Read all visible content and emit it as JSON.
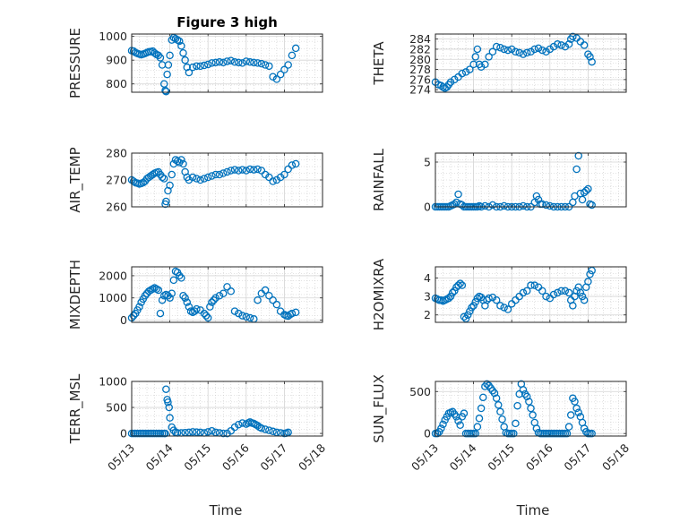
{
  "figure": {
    "title": "Figure 3 high",
    "xlabel": "Time",
    "x_ticklabels": [
      "05/13",
      "05/14",
      "05/15",
      "05/16",
      "05/17",
      "05/18"
    ],
    "marker_color": "#0072BD",
    "axis_color": "#262626",
    "grid_color": "#d4d4d4"
  },
  "chart_data": [
    {
      "id": "pressure",
      "type": "scatter",
      "title": "Figure 3 high",
      "xlabel": "",
      "ylabel": "PRESSURE",
      "xlim": [
        0,
        5
      ],
      "ylim": [
        765,
        1010
      ],
      "yticks": [
        800,
        900,
        1000
      ],
      "grid": true,
      "x": [
        0.0,
        0.05,
        0.1,
        0.15,
        0.2,
        0.25,
        0.3,
        0.35,
        0.4,
        0.45,
        0.5,
        0.55,
        0.6,
        0.65,
        0.7,
        0.75,
        0.8,
        0.85,
        0.88,
        0.9,
        0.93,
        0.96,
        1.0,
        1.05,
        1.1,
        1.15,
        1.2,
        1.25,
        1.3,
        1.35,
        1.4,
        1.45,
        1.5,
        1.6,
        1.7,
        1.8,
        1.9,
        2.0,
        2.1,
        2.2,
        2.3,
        2.4,
        2.5,
        2.6,
        2.7,
        2.8,
        2.9,
        3.0,
        3.1,
        3.2,
        3.3,
        3.4,
        3.5,
        3.6,
        3.7,
        3.8,
        3.9,
        4.0,
        4.1,
        4.2,
        4.3
      ],
      "y": [
        940,
        938,
        932,
        928,
        925,
        923,
        925,
        928,
        932,
        935,
        936,
        938,
        930,
        924,
        920,
        910,
        880,
        800,
        772,
        768,
        840,
        880,
        920,
        985,
        995,
        990,
        985,
        980,
        960,
        930,
        900,
        870,
        848,
        870,
        875,
        875,
        878,
        882,
        888,
        890,
        892,
        890,
        895,
        898,
        892,
        890,
        888,
        895,
        892,
        890,
        888,
        885,
        880,
        875,
        830,
        820,
        840,
        860,
        880,
        920,
        950
      ]
    },
    {
      "id": "theta",
      "type": "scatter",
      "ylabel": "THETA",
      "xlim": [
        0,
        5
      ],
      "ylim": [
        273.5,
        285
      ],
      "yticks": [
        274,
        276,
        278,
        280,
        282,
        284
      ],
      "grid": true,
      "x": [
        0.0,
        0.08,
        0.15,
        0.2,
        0.25,
        0.3,
        0.35,
        0.4,
        0.5,
        0.6,
        0.7,
        0.8,
        0.9,
        1.0,
        1.05,
        1.1,
        1.15,
        1.2,
        1.3,
        1.4,
        1.5,
        1.6,
        1.7,
        1.8,
        1.9,
        2.0,
        2.1,
        2.2,
        2.3,
        2.4,
        2.5,
        2.6,
        2.7,
        2.8,
        2.9,
        3.0,
        3.1,
        3.2,
        3.3,
        3.4,
        3.5,
        3.55,
        3.6,
        3.7,
        3.8,
        3.9,
        4.0,
        4.05,
        4.1
      ],
      "y": [
        275.5,
        275.0,
        274.8,
        274.5,
        274.3,
        274.5,
        275.0,
        275.5,
        276.0,
        276.5,
        277.2,
        277.5,
        278.0,
        279.0,
        280.5,
        282.0,
        279.0,
        278.5,
        279.0,
        280.5,
        281.5,
        282.5,
        282.3,
        282.0,
        281.8,
        282.0,
        281.5,
        281.3,
        281.0,
        281.3,
        281.5,
        282.0,
        282.2,
        281.8,
        281.5,
        282.0,
        282.5,
        283.0,
        282.8,
        282.5,
        283.0,
        284.0,
        284.5,
        284.2,
        283.5,
        282.8,
        281.0,
        280.5,
        279.5
      ]
    },
    {
      "id": "air_temp",
      "type": "scatter",
      "ylabel": "AIR_TEMP",
      "xlim": [
        0,
        5
      ],
      "ylim": [
        260,
        280
      ],
      "yticks": [
        260,
        270,
        280
      ],
      "grid": true,
      "x": [
        0.0,
        0.05,
        0.1,
        0.15,
        0.2,
        0.25,
        0.3,
        0.35,
        0.4,
        0.45,
        0.5,
        0.55,
        0.6,
        0.65,
        0.7,
        0.75,
        0.8,
        0.85,
        0.88,
        0.9,
        0.95,
        1.0,
        1.05,
        1.1,
        1.15,
        1.2,
        1.25,
        1.3,
        1.35,
        1.4,
        1.45,
        1.5,
        1.6,
        1.7,
        1.8,
        1.9,
        2.0,
        2.1,
        2.2,
        2.3,
        2.4,
        2.5,
        2.6,
        2.7,
        2.8,
        2.9,
        3.0,
        3.1,
        3.2,
        3.3,
        3.4,
        3.5,
        3.6,
        3.7,
        3.8,
        3.9,
        4.0,
        4.1,
        4.2,
        4.3
      ],
      "y": [
        270,
        269.5,
        269,
        268.8,
        268.5,
        268.7,
        269,
        269.5,
        270.5,
        271,
        271.5,
        272,
        272.5,
        272.8,
        273,
        272,
        271,
        270.5,
        261,
        262,
        266,
        268,
        272,
        276,
        277.5,
        277,
        276.5,
        277.5,
        276,
        273,
        271,
        270,
        271,
        270.5,
        270,
        270.5,
        271,
        271.5,
        272,
        272,
        272.5,
        273,
        273.5,
        273.8,
        273.5,
        273.8,
        273.5,
        274,
        273.8,
        274,
        273.5,
        272,
        271,
        269.5,
        270,
        271,
        272,
        274,
        275.5,
        276
      ]
    },
    {
      "id": "rainfall",
      "type": "scatter",
      "ylabel": "RAINFALL",
      "xlim": [
        0,
        5
      ],
      "ylim": [
        0,
        6
      ],
      "yticks": [
        0,
        5
      ],
      "grid": true,
      "x": [
        0.0,
        0.05,
        0.1,
        0.15,
        0.2,
        0.25,
        0.3,
        0.35,
        0.4,
        0.45,
        0.5,
        0.55,
        0.6,
        0.65,
        0.7,
        0.75,
        0.8,
        0.85,
        0.9,
        0.95,
        1.0,
        1.05,
        1.1,
        1.15,
        1.2,
        1.3,
        1.4,
        1.5,
        1.6,
        1.7,
        1.8,
        1.9,
        2.0,
        2.1,
        2.2,
        2.3,
        2.4,
        2.5,
        2.6,
        2.65,
        2.7,
        2.75,
        2.8,
        2.9,
        3.0,
        3.1,
        3.2,
        3.3,
        3.4,
        3.5,
        3.6,
        3.65,
        3.7,
        3.75,
        3.8,
        3.85,
        3.9,
        3.95,
        4.0,
        4.05,
        4.1
      ],
      "y": [
        0,
        0,
        0,
        0,
        0,
        0,
        0,
        0,
        0.1,
        0.2,
        0.3,
        0.5,
        1.4,
        0.3,
        0.2,
        0,
        0,
        0,
        0,
        0,
        0,
        0,
        0,
        0.1,
        0,
        0.1,
        0,
        0.2,
        0,
        0,
        0.1,
        0,
        0,
        0,
        0,
        0.1,
        0,
        0,
        0.5,
        1.2,
        0.8,
        0.3,
        0.3,
        0.2,
        0.1,
        0,
        0,
        0,
        0,
        0,
        0.5,
        1.2,
        4.2,
        5.7,
        1.5,
        0.8,
        1.6,
        1.8,
        2.0,
        0.3,
        0.2
      ]
    },
    {
      "id": "mixdepth",
      "type": "scatter",
      "ylabel": "MIXDEPTH",
      "xlim": [
        0,
        5
      ],
      "ylim": [
        -100,
        2400
      ],
      "yticks": [
        0,
        1000,
        2000
      ],
      "grid": true,
      "x": [
        0.0,
        0.05,
        0.1,
        0.15,
        0.2,
        0.25,
        0.3,
        0.35,
        0.4,
        0.45,
        0.5,
        0.55,
        0.6,
        0.65,
        0.7,
        0.75,
        0.8,
        0.85,
        0.9,
        0.95,
        1.0,
        1.05,
        1.1,
        1.15,
        1.2,
        1.25,
        1.3,
        1.35,
        1.4,
        1.45,
        1.5,
        1.55,
        1.6,
        1.65,
        1.7,
        1.8,
        1.9,
        1.95,
        2.0,
        2.05,
        2.1,
        2.15,
        2.2,
        2.3,
        2.4,
        2.5,
        2.6,
        2.7,
        2.8,
        2.9,
        3.0,
        3.1,
        3.2,
        3.3,
        3.4,
        3.5,
        3.6,
        3.7,
        3.8,
        3.9,
        4.0,
        4.05,
        4.1,
        4.15,
        4.2,
        4.3
      ],
      "y": [
        100,
        200,
        300,
        450,
        600,
        800,
        950,
        1100,
        1200,
        1300,
        1350,
        1400,
        1450,
        1400,
        1350,
        300,
        900,
        1100,
        1150,
        1100,
        1000,
        1200,
        1800,
        2200,
        2150,
        2000,
        1900,
        1100,
        1000,
        800,
        600,
        400,
        350,
        400,
        500,
        450,
        300,
        200,
        100,
        600,
        800,
        900,
        1000,
        1100,
        1200,
        1500,
        1300,
        400,
        300,
        200,
        150,
        100,
        50,
        900,
        1200,
        1350,
        1100,
        900,
        700,
        400,
        250,
        200,
        180,
        250,
        300,
        350
      ]
    },
    {
      "id": "h2omixra",
      "type": "scatter",
      "ylabel": "H2OMIXRA",
      "xlim": [
        0,
        5
      ],
      "ylim": [
        1.6,
        4.6
      ],
      "yticks": [
        2,
        3,
        4
      ],
      "grid": true,
      "x": [
        0.0,
        0.05,
        0.1,
        0.15,
        0.2,
        0.25,
        0.3,
        0.35,
        0.4,
        0.45,
        0.5,
        0.55,
        0.6,
        0.65,
        0.7,
        0.75,
        0.8,
        0.85,
        0.9,
        0.95,
        1.0,
        1.05,
        1.1,
        1.15,
        1.2,
        1.25,
        1.3,
        1.35,
        1.4,
        1.5,
        1.6,
        1.7,
        1.8,
        1.9,
        2.0,
        2.1,
        2.2,
        2.3,
        2.4,
        2.5,
        2.6,
        2.7,
        2.8,
        2.9,
        3.0,
        3.1,
        3.2,
        3.3,
        3.4,
        3.5,
        3.55,
        3.6,
        3.65,
        3.7,
        3.75,
        3.8,
        3.85,
        3.9,
        3.95,
        4.0,
        4.05,
        4.1
      ],
      "y": [
        2.9,
        2.85,
        2.8,
        2.8,
        2.75,
        2.8,
        2.85,
        2.9,
        3.0,
        3.2,
        3.3,
        3.5,
        3.6,
        3.7,
        3.6,
        1.9,
        1.8,
        2.0,
        2.2,
        2.4,
        2.5,
        2.7,
        2.9,
        3.0,
        2.95,
        2.8,
        2.5,
        2.8,
        2.9,
        2.95,
        2.8,
        2.5,
        2.4,
        2.3,
        2.6,
        2.8,
        3.0,
        3.2,
        3.3,
        3.6,
        3.6,
        3.5,
        3.3,
        3.0,
        2.9,
        3.1,
        3.2,
        3.3,
        3.3,
        3.2,
        2.8,
        2.5,
        3.0,
        3.3,
        3.5,
        3.2,
        3.0,
        2.8,
        3.5,
        3.8,
        4.2,
        4.4
      ]
    },
    {
      "id": "terr_msl",
      "type": "scatter",
      "ylabel": "TERR_MSL",
      "xlim": [
        0,
        5
      ],
      "ylim": [
        -50,
        1000
      ],
      "yticks": [
        0,
        500,
        1000
      ],
      "grid": true,
      "x": [
        0.0,
        0.05,
        0.1,
        0.15,
        0.2,
        0.25,
        0.3,
        0.35,
        0.4,
        0.45,
        0.5,
        0.55,
        0.6,
        0.65,
        0.7,
        0.75,
        0.8,
        0.85,
        0.88,
        0.9,
        0.93,
        0.95,
        0.98,
        1.0,
        1.05,
        1.1,
        1.15,
        1.2,
        1.3,
        1.4,
        1.5,
        1.6,
        1.7,
        1.8,
        1.9,
        2.0,
        2.1,
        2.2,
        2.3,
        2.4,
        2.5,
        2.6,
        2.7,
        2.8,
        2.9,
        3.0,
        3.05,
        3.1,
        3.15,
        3.2,
        3.25,
        3.3,
        3.35,
        3.4,
        3.5,
        3.6,
        3.7,
        3.8,
        3.9,
        4.0,
        4.05,
        4.1
      ],
      "y": [
        0,
        0,
        0,
        0,
        0,
        0,
        0,
        0,
        0,
        0,
        0,
        0,
        0,
        0,
        0,
        0,
        0,
        0,
        0,
        850,
        650,
        600,
        500,
        300,
        120,
        60,
        20,
        10,
        10,
        15,
        20,
        30,
        25,
        20,
        10,
        30,
        50,
        20,
        10,
        0,
        0,
        50,
        120,
        170,
        200,
        180,
        200,
        220,
        200,
        190,
        170,
        150,
        120,
        100,
        80,
        60,
        40,
        20,
        10,
        0,
        5,
        20
      ]
    },
    {
      "id": "sun_flux",
      "type": "scatter",
      "ylabel": "SUN_FLUX",
      "xlim": [
        0,
        5
      ],
      "ylim": [
        -30,
        620
      ],
      "yticks": [
        0,
        500
      ],
      "grid": true,
      "x": [
        0.0,
        0.05,
        0.1,
        0.15,
        0.2,
        0.25,
        0.3,
        0.35,
        0.4,
        0.45,
        0.5,
        0.55,
        0.6,
        0.65,
        0.7,
        0.75,
        0.8,
        0.85,
        0.9,
        0.95,
        1.0,
        1.05,
        1.1,
        1.15,
        1.2,
        1.25,
        1.3,
        1.35,
        1.4,
        1.45,
        1.5,
        1.55,
        1.6,
        1.65,
        1.7,
        1.75,
        1.8,
        1.85,
        1.9,
        1.95,
        2.0,
        2.05,
        2.1,
        2.15,
        2.2,
        2.25,
        2.3,
        2.35,
        2.4,
        2.45,
        2.5,
        2.55,
        2.6,
        2.65,
        2.7,
        2.75,
        2.8,
        2.85,
        2.9,
        2.95,
        3.0,
        3.05,
        3.1,
        3.15,
        3.2,
        3.25,
        3.3,
        3.35,
        3.4,
        3.45,
        3.5,
        3.55,
        3.6,
        3.65,
        3.7,
        3.75,
        3.8,
        3.85,
        3.9,
        3.95,
        4.0,
        4.05,
        4.1
      ],
      "y": [
        0,
        0,
        20,
        60,
        110,
        160,
        200,
        240,
        250,
        260,
        230,
        200,
        150,
        100,
        200,
        240,
        0,
        0,
        0,
        0,
        0,
        0,
        80,
        180,
        300,
        430,
        560,
        590,
        570,
        540,
        510,
        480,
        420,
        340,
        260,
        170,
        80,
        10,
        0,
        0,
        0,
        0,
        120,
        330,
        470,
        590,
        520,
        470,
        440,
        380,
        300,
        220,
        130,
        60,
        10,
        0,
        0,
        0,
        0,
        0,
        0,
        0,
        0,
        0,
        0,
        0,
        0,
        0,
        0,
        0,
        80,
        220,
        420,
        380,
        300,
        250,
        200,
        130,
        60,
        20,
        0,
        0,
        0
      ]
    }
  ]
}
